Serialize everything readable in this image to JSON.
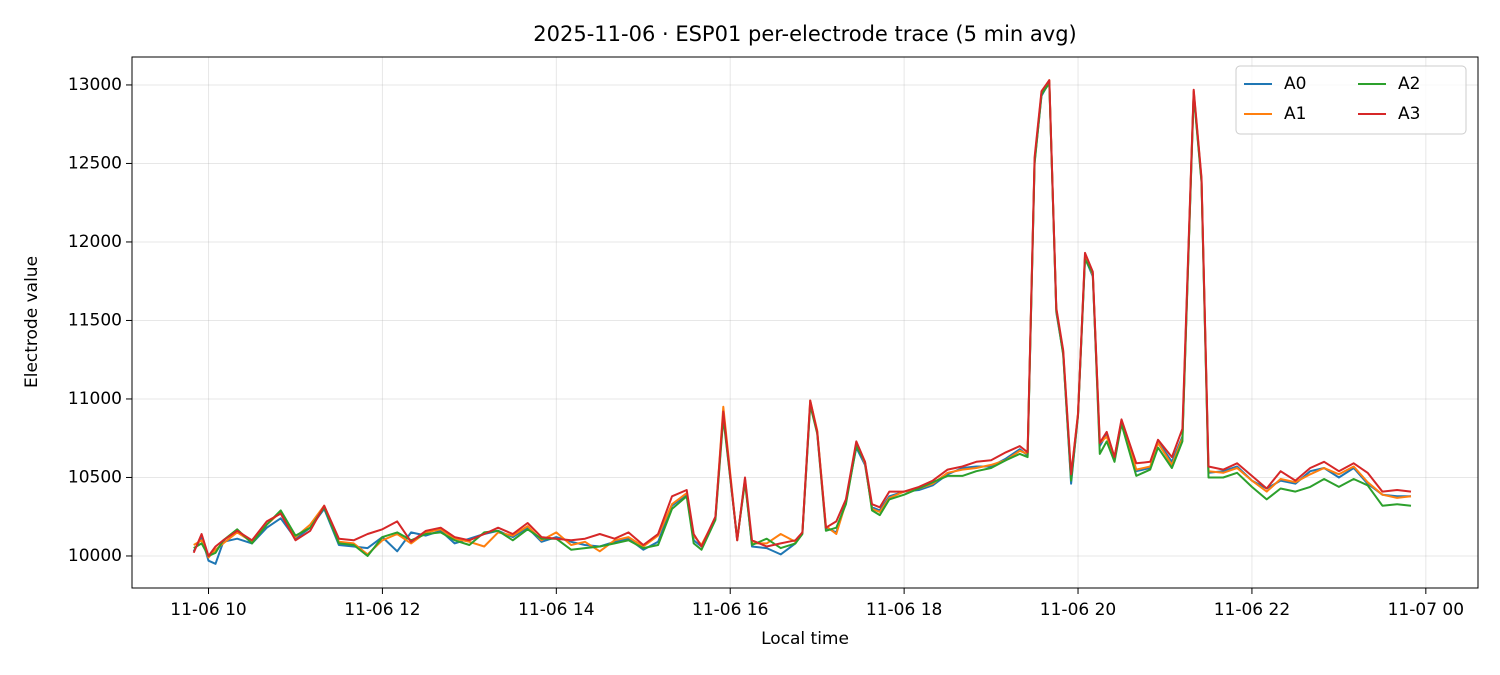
{
  "chart_data": {
    "type": "line",
    "title": "2025-11-06 · ESP01 per-electrode trace (5 min avg)",
    "x_label": "Local time",
    "y_label": "Electrode value",
    "x": [
      9.83,
      9.92,
      10.0,
      10.08,
      10.17,
      10.33,
      10.5,
      10.67,
      10.83,
      11.0,
      11.17,
      11.33,
      11.5,
      11.67,
      11.83,
      12.0,
      12.17,
      12.33,
      12.5,
      12.67,
      12.83,
      13.0,
      13.17,
      13.33,
      13.5,
      13.67,
      13.83,
      14.0,
      14.17,
      14.33,
      14.5,
      14.67,
      14.83,
      15.0,
      15.17,
      15.33,
      15.5,
      15.58,
      15.67,
      15.83,
      15.92,
      16.08,
      16.17,
      16.25,
      16.42,
      16.58,
      16.75,
      16.83,
      16.92,
      17.0,
      17.1,
      17.22,
      17.33,
      17.45,
      17.55,
      17.63,
      17.72,
      17.83,
      18.0,
      18.17,
      18.33,
      18.5,
      18.67,
      18.83,
      19.0,
      19.17,
      19.33,
      19.42,
      19.5,
      19.58,
      19.67,
      19.75,
      19.83,
      19.92,
      20.0,
      20.08,
      20.17,
      20.25,
      20.33,
      20.42,
      20.5,
      20.67,
      20.83,
      20.92,
      21.08,
      21.2,
      21.33,
      21.42,
      21.5,
      21.67,
      21.83,
      22.0,
      22.17,
      22.33,
      22.5,
      22.67,
      22.83,
      23.0,
      23.17,
      23.33,
      23.5,
      23.67,
      23.83
    ],
    "series": [
      {
        "name": "A0",
        "color": "#1f77b4",
        "values": [
          10030,
          10120,
          9970,
          9950,
          10090,
          10110,
          10080,
          10180,
          10240,
          10110,
          10180,
          10300,
          10070,
          10060,
          10050,
          10120,
          10030,
          10150,
          10130,
          10160,
          10080,
          10110,
          10140,
          10160,
          10120,
          10180,
          10090,
          10120,
          10090,
          10070,
          10060,
          10090,
          10110,
          10040,
          10090,
          10320,
          10390,
          10100,
          10060,
          10240,
          10900,
          10100,
          10490,
          10060,
          10050,
          10010,
          10080,
          10150,
          10970,
          10790,
          10180,
          10150,
          10350,
          10690,
          10580,
          10310,
          10290,
          10380,
          10410,
          10420,
          10450,
          10520,
          10560,
          10570,
          10570,
          10620,
          10680,
          10640,
          12510,
          12930,
          13020,
          11550,
          11290,
          10460,
          10900,
          11900,
          11780,
          10700,
          10780,
          10620,
          10850,
          10540,
          10560,
          10730,
          10600,
          10760,
          12950,
          12390,
          10530,
          10540,
          10570,
          10480,
          10430,
          10480,
          10460,
          10540,
          10560,
          10500,
          10560,
          10460,
          10390,
          10380,
          10380
        ]
      },
      {
        "name": "A1",
        "color": "#ff7f0e",
        "values": [
          10070,
          10100,
          9990,
          10040,
          10080,
          10150,
          10090,
          10200,
          10280,
          10120,
          10200,
          10320,
          10090,
          10080,
          10010,
          10100,
          10140,
          10080,
          10150,
          10170,
          10110,
          10090,
          10060,
          10150,
          10130,
          10190,
          10100,
          10150,
          10070,
          10090,
          10030,
          10100,
          10120,
          10060,
          10130,
          10330,
          10400,
          10130,
          10070,
          10240,
          10950,
          10100,
          10480,
          10080,
          10080,
          10140,
          10090,
          10150,
          10990,
          10800,
          10190,
          10140,
          10340,
          10720,
          10590,
          10300,
          10280,
          10370,
          10410,
          10430,
          10460,
          10530,
          10550,
          10560,
          10580,
          10610,
          10670,
          10650,
          12520,
          12950,
          13030,
          11560,
          11300,
          10500,
          10910,
          11910,
          11790,
          10720,
          10760,
          10630,
          10860,
          10550,
          10570,
          10720,
          10580,
          10750,
          12960,
          12400,
          10540,
          10530,
          10560,
          10480,
          10410,
          10490,
          10470,
          10520,
          10560,
          10520,
          10570,
          10470,
          10390,
          10370,
          10380
        ]
      },
      {
        "name": "A2",
        "color": "#2ca02c",
        "values": [
          10050,
          10080,
          10000,
          10020,
          10100,
          10170,
          10080,
          10200,
          10290,
          10130,
          10180,
          10310,
          10080,
          10070,
          10000,
          10120,
          10150,
          10100,
          10140,
          10150,
          10100,
          10070,
          10150,
          10160,
          10100,
          10170,
          10110,
          10110,
          10040,
          10050,
          10060,
          10080,
          10100,
          10050,
          10070,
          10300,
          10380,
          10080,
          10040,
          10230,
          10880,
          10110,
          10470,
          10070,
          10110,
          10050,
          10080,
          10140,
          10960,
          10780,
          10160,
          10180,
          10330,
          10700,
          10600,
          10290,
          10260,
          10360,
          10390,
          10430,
          10470,
          10510,
          10510,
          10540,
          10560,
          10610,
          10650,
          10630,
          12500,
          12940,
          13010,
          11570,
          11280,
          10480,
          10890,
          11890,
          11800,
          10650,
          10730,
          10600,
          10840,
          10510,
          10550,
          10690,
          10560,
          10730,
          12940,
          12380,
          10500,
          10500,
          10530,
          10440,
          10360,
          10430,
          10410,
          10440,
          10490,
          10440,
          10490,
          10450,
          10320,
          10330,
          10320
        ]
      },
      {
        "name": "A3",
        "color": "#d62728",
        "values": [
          10020,
          10140,
          10000,
          10060,
          10100,
          10160,
          10100,
          10220,
          10270,
          10100,
          10160,
          10320,
          10110,
          10100,
          10140,
          10170,
          10220,
          10090,
          10160,
          10180,
          10120,
          10100,
          10140,
          10180,
          10140,
          10210,
          10120,
          10110,
          10100,
          10110,
          10140,
          10110,
          10150,
          10070,
          10140,
          10380,
          10420,
          10140,
          10060,
          10250,
          10920,
          10100,
          10500,
          10100,
          10060,
          10080,
          10100,
          10150,
          10990,
          10790,
          10180,
          10220,
          10360,
          10730,
          10600,
          10330,
          10310,
          10410,
          10410,
          10440,
          10480,
          10550,
          10570,
          10600,
          10610,
          10660,
          10700,
          10660,
          12540,
          12960,
          13030,
          11580,
          11310,
          10520,
          10900,
          11930,
          11810,
          10720,
          10790,
          10630,
          10870,
          10590,
          10600,
          10740,
          10630,
          10810,
          12970,
          12410,
          10570,
          10550,
          10590,
          10510,
          10430,
          10540,
          10480,
          10560,
          10600,
          10540,
          10590,
          10530,
          10410,
          10420,
          10410
        ]
      }
    ],
    "xlim": [
      9.12,
      24.6
    ],
    "xticks": [
      {
        "value": 10,
        "label": "11-06 10"
      },
      {
        "value": 12,
        "label": "11-06 12"
      },
      {
        "value": 14,
        "label": "11-06 14"
      },
      {
        "value": 16,
        "label": "11-06 16"
      },
      {
        "value": 18,
        "label": "11-06 18"
      },
      {
        "value": 20,
        "label": "11-06 20"
      },
      {
        "value": 22,
        "label": "11-06 22"
      },
      {
        "value": 24,
        "label": "11-07 00"
      }
    ],
    "ylim": [
      9796,
      13178
    ],
    "yticks": [
      10000,
      10500,
      11000,
      11500,
      12000,
      12500,
      13000
    ],
    "grid": true,
    "legend": "upper right"
  }
}
